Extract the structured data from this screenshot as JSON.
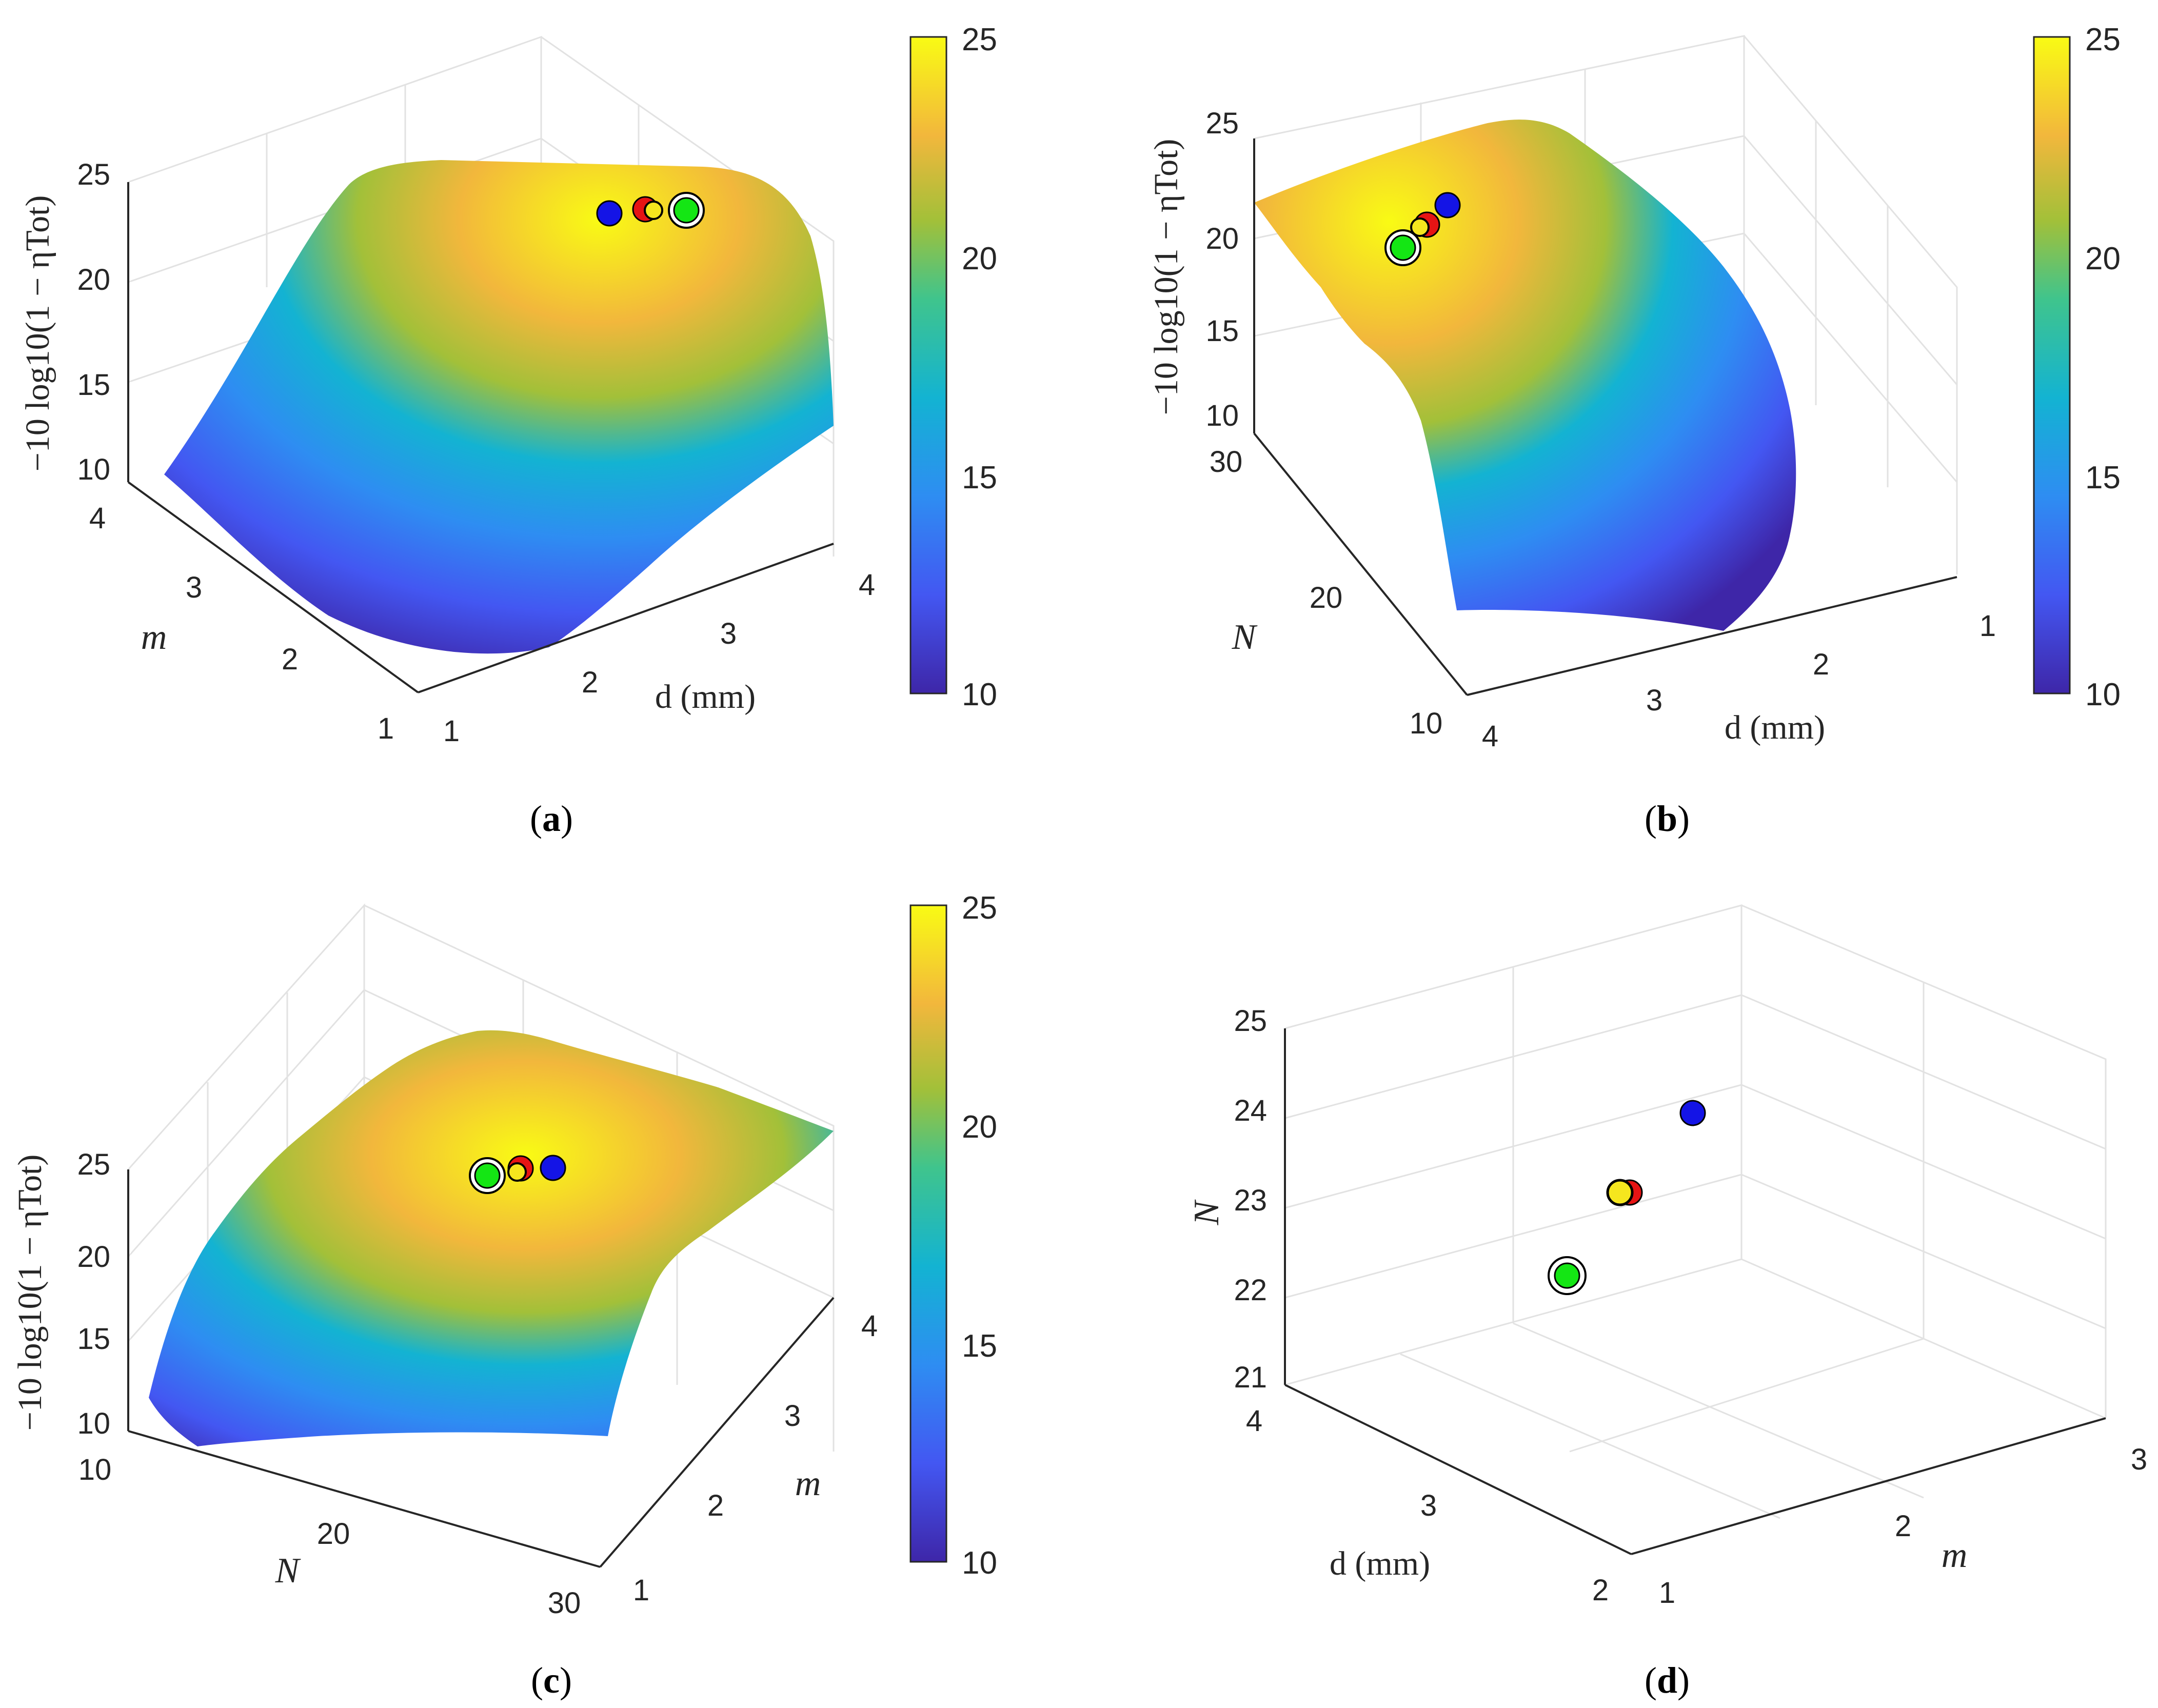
{
  "chart_data": [
    {
      "panel": "a",
      "type": "surface",
      "caption": "a",
      "xlabel": "d (mm)",
      "ylabel": "m",
      "zlabel": "−10 log10(1 − ηTot)",
      "x_ticks": [
        "1",
        "2",
        "3",
        "4"
      ],
      "y_ticks": [
        "1",
        "2",
        "3",
        "4"
      ],
      "z_ticks": [
        "10",
        "15",
        "20",
        "25"
      ],
      "zlim": [
        10,
        25
      ],
      "colorbar": {
        "ticks": [
          "10",
          "15",
          "20",
          "25"
        ],
        "range": [
          10,
          25
        ]
      },
      "markers": [
        {
          "name": "blue",
          "color": "#1414e6",
          "d": 3.1,
          "m": 3.9,
          "z": 22.8
        },
        {
          "name": "red",
          "color": "#e61414",
          "d": 3.35,
          "m": 3.85,
          "z": 22.9
        },
        {
          "name": "yellow",
          "color": "#f5e61e",
          "d": 3.4,
          "m": 3.8,
          "z": 22.9
        },
        {
          "name": "green",
          "color": "#14e614",
          "d": 3.6,
          "m": 3.7,
          "z": 23.0
        }
      ]
    },
    {
      "panel": "b",
      "type": "surface",
      "caption": "b",
      "xlabel": "d (mm)",
      "ylabel": "N",
      "zlabel": "−10 log10(1 − ηTot)",
      "x_ticks": [
        "1",
        "2",
        "3",
        "4"
      ],
      "y_ticks": [
        "10",
        "20",
        "30"
      ],
      "z_ticks": [
        "10",
        "15",
        "20",
        "25"
      ],
      "zlim": [
        10,
        25
      ],
      "colorbar": {
        "ticks": [
          "10",
          "15",
          "20",
          "25"
        ],
        "range": [
          10,
          25
        ]
      },
      "markers": [
        {
          "name": "blue",
          "color": "#1414e6",
          "d": 3.0,
          "N": 24,
          "z": 22.5
        },
        {
          "name": "red",
          "color": "#e61414",
          "d": 3.2,
          "N": 23.1,
          "z": 22.3
        },
        {
          "name": "yellow",
          "color": "#f5e61e",
          "d": 3.25,
          "N": 23.1,
          "z": 22.3
        },
        {
          "name": "green",
          "color": "#14e614",
          "d": 3.5,
          "N": 22.3,
          "z": 22.0
        }
      ]
    },
    {
      "panel": "c",
      "type": "surface",
      "caption": "c",
      "xlabel": "N",
      "ylabel": "m",
      "zlabel": "−10 log10(1 − ηTot)",
      "x_ticks": [
        "10",
        "20",
        "30"
      ],
      "y_ticks": [
        "1",
        "2",
        "3",
        "4"
      ],
      "z_ticks": [
        "10",
        "15",
        "20",
        "25"
      ],
      "zlim": [
        10,
        25
      ],
      "colorbar": {
        "ticks": [
          "10",
          "15",
          "20",
          "25"
        ],
        "range": [
          10,
          25
        ]
      },
      "markers": [
        {
          "name": "green",
          "color": "#14e614",
          "N": 22.3,
          "m": 3.7,
          "z": 23.0
        },
        {
          "name": "yellow",
          "color": "#f5e61e",
          "N": 23.1,
          "m": 3.8,
          "z": 22.9
        },
        {
          "name": "red",
          "color": "#e61414",
          "N": 23.1,
          "m": 3.85,
          "z": 22.9
        },
        {
          "name": "blue",
          "color": "#1414e6",
          "N": 24,
          "m": 3.9,
          "z": 22.8
        }
      ]
    },
    {
      "panel": "d",
      "type": "scatter3d",
      "caption": "d",
      "xlabel": "d (mm)",
      "ylabel": "m",
      "zlabel": "N",
      "x_ticks": [
        "2",
        "3",
        "4"
      ],
      "y_ticks": [
        "1",
        "2",
        "3"
      ],
      "z_ticks": [
        "21",
        "22",
        "23",
        "24",
        "25"
      ],
      "xlim": [
        2,
        4
      ],
      "ylim": [
        1,
        3
      ],
      "zlim": [
        21,
        25
      ],
      "markers": [
        {
          "name": "blue",
          "color": "#1414e6",
          "d": 3.0,
          "m": 1.9,
          "N": 24
        },
        {
          "name": "red",
          "color": "#e61414",
          "d": 3.2,
          "m": 1.8,
          "N": 23.1
        },
        {
          "name": "yellow",
          "color": "#f5e61e",
          "d": 3.25,
          "m": 1.75,
          "N": 23.1
        },
        {
          "name": "green",
          "color": "#14e614",
          "d": 3.5,
          "m": 1.6,
          "N": 22.3
        }
      ]
    }
  ]
}
